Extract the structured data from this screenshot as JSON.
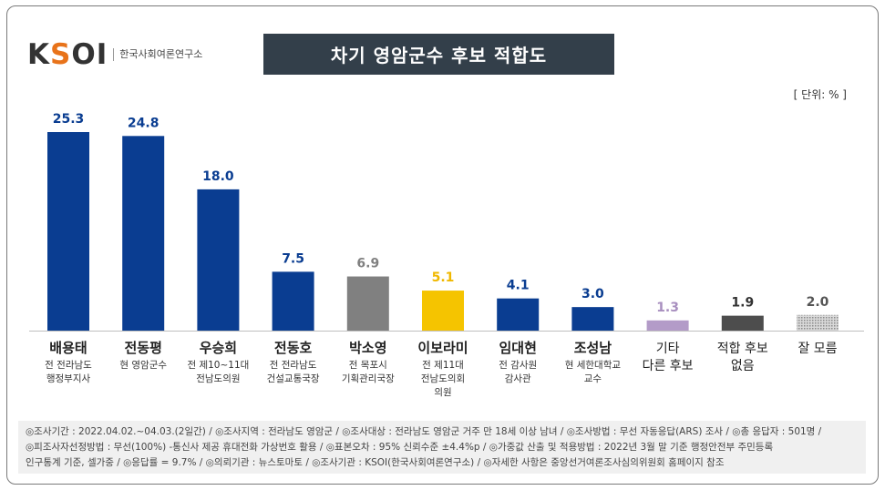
{
  "logo": {
    "mark_pre": "K",
    "mark_accent": "S",
    "mark_post": "OI",
    "subtitle": "한국사회여론연구소"
  },
  "title": "차기 영암군수 후보 적합도",
  "unit": "[ 단위: % ]",
  "chart_data": {
    "type": "bar",
    "title": "차기 영암군수 후보 적합도",
    "unit": "[ 단위: % ]",
    "grid": false,
    "legend": "none",
    "categories": [
      "배용태",
      "전동평",
      "우승희",
      "전동호",
      "박소영",
      "이보라미",
      "임대현",
      "조성남",
      "기타 다른 후보",
      "적합 후보 없음",
      "잘 모름"
    ],
    "values": [
      25.3,
      24.8,
      18.0,
      7.5,
      6.9,
      5.1,
      4.1,
      3.0,
      1.3,
      1.9,
      2.0
    ],
    "ylim": [
      0,
      26
    ],
    "bars": [
      {
        "name": "배용태",
        "desc": [
          "전 전라남도",
          "행정부지사"
        ],
        "value": 25.3,
        "label": "25.3",
        "color": "#0a3d91",
        "label_color": "#0a3d91",
        "bold_name": true
      },
      {
        "name": "전동평",
        "desc": [
          "현 영암군수"
        ],
        "value": 24.8,
        "label": "24.8",
        "color": "#0a3d91",
        "label_color": "#0a3d91",
        "bold_name": true
      },
      {
        "name": "우승희",
        "desc": [
          "전 제10~11대",
          "전남도의원"
        ],
        "value": 18.0,
        "label": "18.0",
        "color": "#0a3d91",
        "label_color": "#0a3d91",
        "bold_name": true
      },
      {
        "name": "전동호",
        "desc": [
          "전 전라남도",
          "건설교통국장"
        ],
        "value": 7.5,
        "label": "7.5",
        "color": "#0a3d91",
        "label_color": "#0a3d91",
        "bold_name": true
      },
      {
        "name": "박소영",
        "desc": [
          "전 목포시",
          "기획관리국장"
        ],
        "value": 6.9,
        "label": "6.9",
        "color": "#808080",
        "label_color": "#808080",
        "bold_name": true
      },
      {
        "name": "이보라미",
        "desc": [
          "전 제11대",
          "전남도의회",
          "의원"
        ],
        "value": 5.1,
        "label": "5.1",
        "color": "#f5c400",
        "label_color": "#f0b800",
        "bold_name": true
      },
      {
        "name": "임대현",
        "desc": [
          "전 감사원",
          "감사관"
        ],
        "value": 4.1,
        "label": "4.1",
        "color": "#0a3d91",
        "label_color": "#0a3d91",
        "bold_name": true
      },
      {
        "name": "조성남",
        "desc": [
          "현 세한대학교",
          "교수"
        ],
        "value": 3.0,
        "label": "3.0",
        "color": "#0a3d91",
        "label_color": "#0a3d91",
        "bold_name": true
      },
      {
        "name": "기타",
        "name2": "다른 후보",
        "desc": [],
        "value": 1.3,
        "label": "1.3",
        "color": "#b39bc8",
        "label_color": "#a88fbf",
        "bold_name": false
      },
      {
        "name": "적합 후보",
        "name2": "없음",
        "desc": [],
        "value": 1.9,
        "label": "1.9",
        "color": "#4d4d4d",
        "label_color": "#333333",
        "bold_name": false
      },
      {
        "name": "잘 모름",
        "desc": [],
        "value": 2.0,
        "label": "2.0",
        "color": "#bdbdbd",
        "label_color": "#555555",
        "bold_name": false,
        "pattern": true
      }
    ]
  },
  "footer": {
    "lines": [
      "◎조사기간 : 2022.04.02.~04.03.(2일간) / ◎조사지역 : 전라남도 영암군 / ◎조사대상 : 전라남도 영암군 거주 만 18세 이상 남녀 / ◎조사방법 : 무선 자동응답(ARS) 조사 / ◎총 응답자 : 501명 /",
      "◎피조사자선정방법 : 무선(100%) -통신사 제공 휴대전화 가상번호 활용 / ◎표본오차 : 95% 신뢰수준 ±4.4%p / ◎가중값 산출 및 적용방법 : 2022년 3월 말 기준 행정안전부 주민등록",
      "인구통계 기준, 셀가중 / ◎응답률 = 9.7% / ◎의뢰기관 : 뉴스토마토 / ◎조사기관 : KSOI(한국사회여론연구소) / ◎자세한 사항은 중앙선거여론조사심의위원회 홈페이지 참조"
    ]
  }
}
